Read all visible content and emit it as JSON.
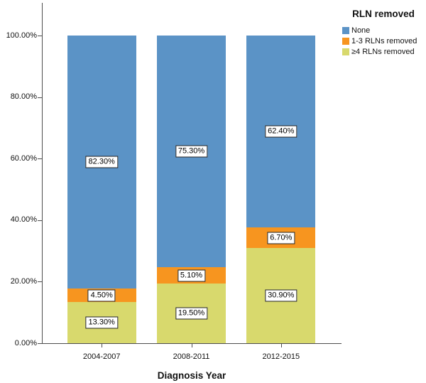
{
  "chart_data": {
    "type": "bar",
    "stacked": true,
    "orientation": "vertical",
    "title": "",
    "xlabel": "Diagnosis Year",
    "ylabel": "",
    "legend_title": "RLN removed",
    "legend_position": "top-right",
    "categories": [
      "2004-2007",
      "2008-2011",
      "2012-2015"
    ],
    "series": [
      {
        "name": "None",
        "color": "#5b93c6",
        "values": [
          82.3,
          75.3,
          62.4
        ],
        "value_labels": [
          "82.30%",
          "75.30%",
          "62.40%"
        ]
      },
      {
        "name": "1-3 RLNs removed",
        "color": "#f7951f",
        "values": [
          4.5,
          5.1,
          6.7
        ],
        "value_labels": [
          "4.50%",
          "5.10%",
          "6.70%"
        ]
      },
      {
        "name": "≥4 RLNs removed",
        "color": "#d8d96d",
        "values": [
          13.3,
          19.5,
          30.9
        ],
        "value_labels": [
          "13.30%",
          "19.50%",
          "30.90%"
        ]
      }
    ],
    "stack_order_bottom_to_top": [
      2,
      1,
      0
    ],
    "y_ticks": [
      {
        "value": 0,
        "label": "0.00%"
      },
      {
        "value": 20,
        "label": "20.00%"
      },
      {
        "value": 40,
        "label": "40.00%"
      },
      {
        "value": 60,
        "label": "60.00%"
      },
      {
        "value": 80,
        "label": "80.00%"
      },
      {
        "value": 100,
        "label": "100.00%"
      }
    ],
    "ylim": [
      0,
      100
    ],
    "grid": false,
    "plot_background": "#ffffff",
    "axis_color": "#4d4d4d",
    "label_box": {
      "background": "#ffffff",
      "border": "#222222"
    }
  }
}
